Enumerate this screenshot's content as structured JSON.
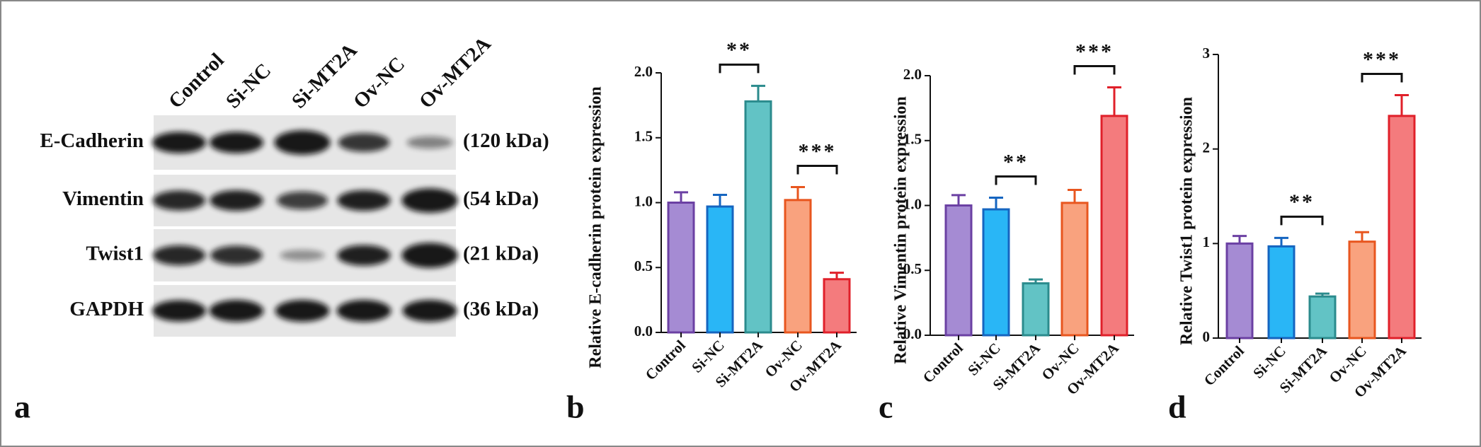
{
  "blot": {
    "panel_label": "a",
    "lanes": [
      "Control",
      "Si-NC",
      "Si-MT2A",
      "Ov-NC",
      "Ov-MT2A"
    ],
    "proteins": [
      {
        "name": "E-Cadherin",
        "size": "(120 kDa)"
      },
      {
        "name": "Vimentin",
        "size": "(54 kDa)"
      },
      {
        "name": "Twist1",
        "size": "(21 kDa)"
      },
      {
        "name": "GAPDH",
        "size": "(36 kDa)"
      }
    ]
  },
  "chart_data": [
    {
      "type": "bar",
      "panel_label": "b",
      "ylabel": "Relative E-cadherin protein expression",
      "categories": [
        "Control",
        "Si-NC",
        "Si-MT2A",
        "Ov-NC",
        "Ov-MT2A"
      ],
      "values": [
        1.0,
        0.97,
        1.78,
        1.02,
        0.41
      ],
      "errors": [
        0.08,
        0.09,
        0.12,
        0.1,
        0.05
      ],
      "colors": [
        "#a58bd3",
        "#29b6f6",
        "#62c3c5",
        "#f9a27e",
        "#f47b7d"
      ],
      "edge_colors": [
        "#6b40a3",
        "#1565c0",
        "#2b8b8d",
        "#e8561f",
        "#e0202a"
      ],
      "ylim": [
        0,
        2.0
      ],
      "yticks": [
        {
          "value": 0,
          "label": "0.0"
        },
        0.5,
        {
          "value": 1,
          "label": "1.0"
        },
        1.5,
        {
          "value": 2,
          "label": "2.0"
        }
      ],
      "annotations": [
        {
          "text": "**",
          "between": [
            "Si-NC",
            "Si-MT2A"
          ]
        },
        {
          "text": "***",
          "between": [
            "Ov-NC",
            "Ov-MT2A"
          ]
        }
      ]
    },
    {
      "type": "bar",
      "panel_label": "c",
      "ylabel": "Relative Vimentin protein expression",
      "categories": [
        "Control",
        "Si-NC",
        "Si-MT2A",
        "Ov-NC",
        "Ov-MT2A"
      ],
      "values": [
        1.0,
        0.97,
        0.4,
        1.02,
        1.69
      ],
      "errors": [
        0.08,
        0.09,
        0.03,
        0.1,
        0.22
      ],
      "colors": [
        "#a58bd3",
        "#29b6f6",
        "#62c3c5",
        "#f9a27e",
        "#f47b7d"
      ],
      "edge_colors": [
        "#6b40a3",
        "#1565c0",
        "#2b8b8d",
        "#e8561f",
        "#e0202a"
      ],
      "ylim": [
        0,
        2.0
      ],
      "yticks": [
        {
          "value": 0,
          "label": "0.0"
        },
        0.5,
        {
          "value": 1,
          "label": "1.0"
        },
        1.5,
        {
          "value": 2,
          "label": "2.0"
        }
      ],
      "annotations": [
        {
          "text": "**",
          "between": [
            "Si-NC",
            "Si-MT2A"
          ]
        },
        {
          "text": "***",
          "between": [
            "Ov-NC",
            "Ov-MT2A"
          ]
        }
      ]
    },
    {
      "type": "bar",
      "panel_label": "d",
      "ylabel": "Relative Twist1 protein expression",
      "categories": [
        "Control",
        "Si-NC",
        "Si-MT2A",
        "Ov-NC",
        "Ov-MT2A"
      ],
      "values": [
        1.0,
        0.97,
        0.44,
        1.02,
        2.35
      ],
      "errors": [
        0.08,
        0.09,
        0.03,
        0.1,
        0.22
      ],
      "colors": [
        "#a58bd3",
        "#29b6f6",
        "#62c3c5",
        "#f9a27e",
        "#f47b7d"
      ],
      "edge_colors": [
        "#6b40a3",
        "#1565c0",
        "#2b8b8d",
        "#e8561f",
        "#e0202a"
      ],
      "ylim": [
        0,
        3
      ],
      "yticks": [
        0,
        1,
        2,
        3
      ],
      "annotations": [
        {
          "text": "**",
          "between": [
            "Si-NC",
            "Si-MT2A"
          ]
        },
        {
          "text": "***",
          "between": [
            "Ov-NC",
            "Ov-MT2A"
          ]
        }
      ]
    }
  ]
}
